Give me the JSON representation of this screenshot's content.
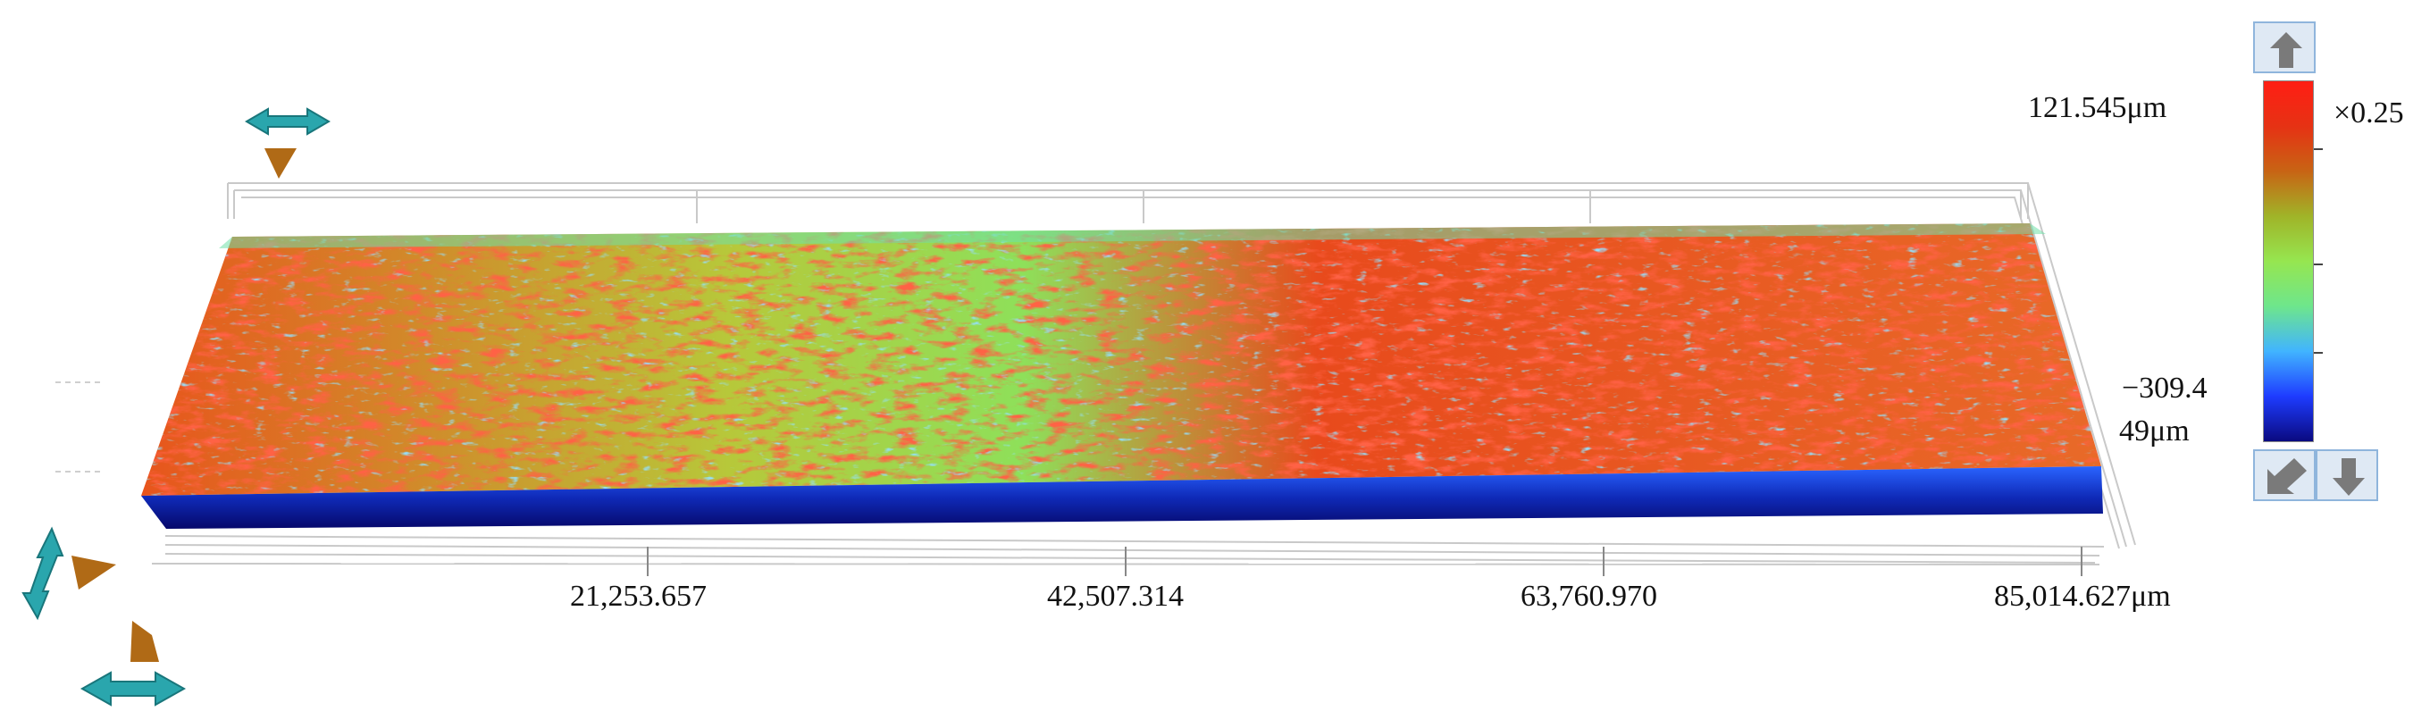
{
  "view": {
    "x_axis_ticks": [
      "21,253.657",
      "42,507.314",
      "63,760.970",
      "85,014.627μm"
    ],
    "z_max_label": "121.545μm",
    "z_min_label_line1": "−309.4",
    "z_min_label_line2": "49μm",
    "z_scale_label": "×0.25"
  },
  "legend": {
    "colors": [
      "#0a0a80",
      "#1e3cff",
      "#41b4ff",
      "#6ee68c",
      "#96e650",
      "#a0b428",
      "#c86414",
      "#e63214",
      "#ff1e14"
    ]
  },
  "controls": {
    "up_icon": "arrow-up-icon",
    "down_icon": "arrow-down-icon",
    "reset_icon": "arrow-diagonal-icon"
  },
  "colors": {
    "nav_arrow": "#2aa6ad",
    "nav_triangle": "#b06a16",
    "button_fill": "#dfe9f4",
    "button_border": "#8fb5dc",
    "button_arrow": "#7a7a7a"
  }
}
